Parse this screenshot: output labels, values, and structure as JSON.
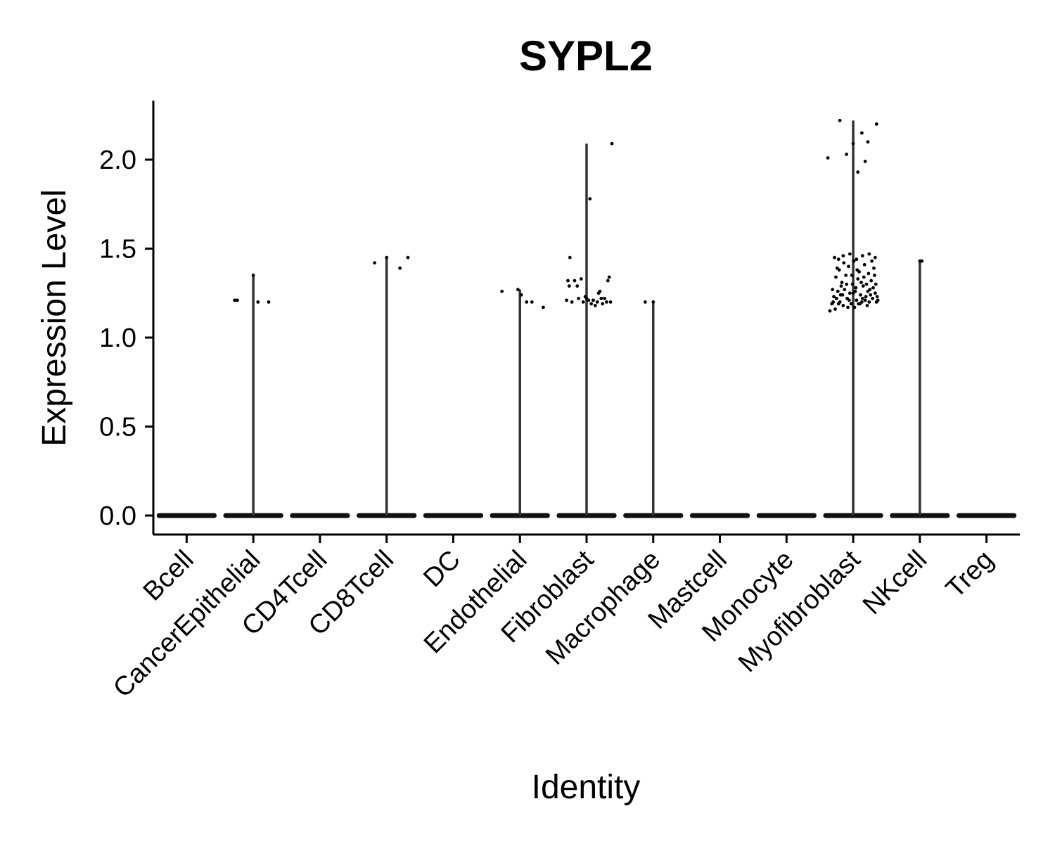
{
  "chart_data": {
    "type": "violin",
    "title": "SYPL2",
    "xlabel": "Identity",
    "ylabel": "Expression Level",
    "ylim": [
      -0.11,
      2.35
    ],
    "yticks": [
      0.0,
      0.5,
      1.0,
      1.5,
      2.0
    ],
    "ytick_labels": [
      "0.0",
      "0.5",
      "1.0",
      "1.5",
      "2.0"
    ],
    "grid": false,
    "legend": "none",
    "categories": [
      "Bcell",
      "CancerEpithelial",
      "CD4Tcell",
      "CD8Tcell",
      "DC",
      "Endothelial",
      "Fibroblast",
      "Macrophage",
      "Mastcell",
      "Monocyte",
      "Myofibroblast",
      "NKcell",
      "Treg"
    ],
    "max_values": [
      0,
      1.35,
      0,
      1.45,
      0,
      1.27,
      2.09,
      1.2,
      0,
      0,
      2.22,
      1.43,
      0
    ],
    "points": [
      [],
      [
        [
          -0.28,
          1.21
        ],
        [
          -0.24,
          1.21
        ],
        [
          0.07,
          1.2
        ],
        [
          0.23,
          1.2
        ],
        [
          0.0,
          1.35
        ]
      ],
      [],
      [
        [
          -0.18,
          1.42
        ],
        [
          0.2,
          1.39
        ],
        [
          0.32,
          1.45
        ],
        [
          0.0,
          1.45
        ]
      ],
      [],
      [
        [
          -0.27,
          1.26
        ],
        [
          -0.03,
          1.27
        ],
        [
          0.02,
          1.24
        ],
        [
          0.1,
          1.2
        ],
        [
          0.18,
          1.2
        ],
        [
          0.35,
          1.17
        ]
      ],
      [
        [
          -0.3,
          1.21
        ],
        [
          -0.28,
          1.32
        ],
        [
          -0.26,
          1.29
        ],
        [
          -0.25,
          1.45
        ],
        [
          -0.22,
          1.2
        ],
        [
          -0.18,
          1.32
        ],
        [
          -0.14,
          1.29
        ],
        [
          -0.12,
          1.22
        ],
        [
          -0.08,
          1.33
        ],
        [
          -0.05,
          1.2
        ],
        [
          -0.02,
          1.23
        ],
        [
          0.0,
          1.22
        ],
        [
          0.03,
          1.21
        ],
        [
          0.05,
          1.78
        ],
        [
          0.07,
          1.19
        ],
        [
          0.1,
          1.21
        ],
        [
          0.13,
          1.18
        ],
        [
          0.16,
          1.2
        ],
        [
          0.18,
          1.25
        ],
        [
          0.2,
          1.26
        ],
        [
          0.22,
          1.22
        ],
        [
          0.24,
          1.19
        ],
        [
          0.27,
          1.22
        ],
        [
          0.3,
          1.2
        ],
        [
          0.32,
          1.32
        ],
        [
          0.34,
          1.34
        ],
        [
          0.36,
          1.2
        ],
        [
          0.38,
          2.09
        ]
      ],
      [
        [
          -0.12,
          1.2
        ],
        [
          0.0,
          1.2
        ]
      ],
      [],
      [],
      [
        [
          -0.38,
          2.01
        ],
        [
          -0.2,
          2.22
        ],
        [
          -0.1,
          2.03
        ],
        [
          0.0,
          2.09
        ],
        [
          0.07,
          1.93
        ],
        [
          0.13,
          2.15
        ],
        [
          0.18,
          1.99
        ],
        [
          0.22,
          2.1
        ],
        [
          0.35,
          2.2
        ],
        [
          -0.28,
          1.45
        ],
        [
          -0.22,
          1.44
        ],
        [
          -0.15,
          1.46
        ],
        [
          -0.05,
          1.47
        ],
        [
          0.05,
          1.44
        ],
        [
          0.14,
          1.46
        ],
        [
          0.24,
          1.47
        ],
        [
          0.33,
          1.45
        ],
        [
          -0.32,
          1.19
        ],
        [
          -0.3,
          1.2
        ],
        [
          -0.27,
          1.16
        ],
        [
          -0.25,
          1.22
        ],
        [
          -0.23,
          1.26
        ],
        [
          -0.21,
          1.38
        ],
        [
          -0.19,
          1.24
        ],
        [
          -0.17,
          1.31
        ],
        [
          -0.15,
          1.18
        ],
        [
          -0.13,
          1.27
        ],
        [
          -0.11,
          1.35
        ],
        [
          -0.09,
          1.22
        ],
        [
          -0.07,
          1.4
        ],
        [
          -0.05,
          1.25
        ],
        [
          -0.03,
          1.19
        ],
        [
          -0.01,
          1.3
        ],
        [
          0.01,
          1.43
        ],
        [
          0.03,
          1.26
        ],
        [
          0.05,
          1.21
        ],
        [
          0.07,
          1.33
        ],
        [
          0.09,
          1.37
        ],
        [
          0.11,
          1.24
        ],
        [
          0.13,
          1.2
        ],
        [
          0.15,
          1.29
        ],
        [
          0.17,
          1.41
        ],
        [
          0.19,
          1.23
        ],
        [
          0.21,
          1.18
        ],
        [
          0.23,
          1.36
        ],
        [
          0.25,
          1.27
        ],
        [
          0.27,
          1.32
        ],
        [
          0.29,
          1.22
        ],
        [
          0.31,
          1.39
        ],
        [
          0.33,
          1.25
        ],
        [
          0.35,
          1.2
        ],
        [
          -0.31,
          1.27
        ],
        [
          -0.26,
          1.34
        ],
        [
          -0.2,
          1.2
        ],
        [
          -0.14,
          1.42
        ],
        [
          -0.08,
          1.17
        ],
        [
          -0.02,
          1.35
        ],
        [
          0.04,
          1.28
        ],
        [
          0.1,
          1.19
        ],
        [
          0.16,
          1.34
        ],
        [
          0.22,
          1.26
        ],
        [
          0.28,
          1.43
        ],
        [
          0.34,
          1.3
        ],
        [
          -0.24,
          1.39
        ],
        [
          -0.16,
          1.24
        ],
        [
          -0.06,
          1.21
        ],
        [
          0.06,
          1.38
        ],
        [
          0.18,
          1.21
        ],
        [
          0.26,
          1.24
        ],
        [
          0.36,
          1.23
        ],
        [
          -0.18,
          1.29
        ],
        [
          0.0,
          1.25
        ],
        [
          0.12,
          1.31
        ],
        [
          0.3,
          1.28
        ],
        [
          -0.29,
          1.23
        ],
        [
          -0.1,
          1.3
        ],
        [
          0.08,
          1.19
        ],
        [
          0.2,
          1.3
        ],
        [
          0.32,
          1.35
        ],
        [
          -0.35,
          1.15
        ],
        [
          -0.22,
          1.19
        ],
        [
          0.02,
          1.17
        ],
        [
          0.14,
          1.22
        ],
        [
          0.24,
          1.2
        ],
        [
          0.37,
          1.21
        ]
      ],
      [
        [
          0.0,
          1.43
        ],
        [
          0.03,
          1.43
        ]
      ],
      []
    ]
  }
}
